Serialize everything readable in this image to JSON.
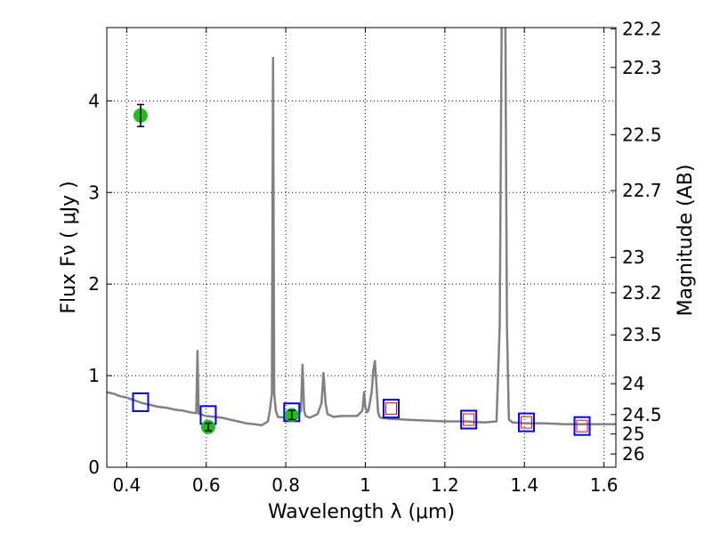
{
  "chart_data": {
    "type": "scatter",
    "xlabel": "Wavelength  λ (μm)",
    "ylabel": "Flux  Fν  ( μJy )",
    "ylabel_right": "Magnitude (AB)",
    "xlim": [
      0.35,
      1.63
    ],
    "ylim": [
      0,
      4.8
    ],
    "grid": true,
    "x_ticks": [
      0.4,
      0.6,
      0.8,
      1,
      1.2,
      1.4,
      1.6
    ],
    "x_tick_labels": [
      "0.4",
      "0.6",
      "0.8",
      "1",
      "1.2",
      "1.4",
      "1.6"
    ],
    "y_ticks": [
      0,
      1,
      2,
      3,
      4
    ],
    "y_tick_labels": [
      "0",
      "1",
      "2",
      "3",
      "4"
    ],
    "right_ticks": [
      22.2,
      22.3,
      22.5,
      22.7,
      23,
      23.2,
      23.5,
      24,
      24.5,
      25,
      26
    ],
    "right_tick_labels": [
      "22.2",
      "22.3",
      "22.5",
      "22.7",
      "23",
      "23.2",
      "23.5",
      "24",
      "24.5",
      "25",
      "26"
    ],
    "colors": {
      "spectrum": "#808080",
      "observed": "#22bb22",
      "model": "#0000ee",
      "upper_limit": "#ee0000"
    },
    "series": [
      {
        "type": "line",
        "x": [
          0.35,
          0.37,
          0.38,
          0.4,
          0.42,
          0.44,
          0.46,
          0.48,
          0.5,
          0.52,
          0.54,
          0.56,
          0.575,
          0.578,
          0.581,
          0.584,
          0.6,
          0.62,
          0.64,
          0.66,
          0.68,
          0.7,
          0.72,
          0.74,
          0.755,
          0.76,
          0.765,
          0.768,
          0.771,
          0.775,
          0.78,
          0.8,
          0.82,
          0.83,
          0.838,
          0.842,
          0.846,
          0.85,
          0.86,
          0.88,
          0.89,
          0.895,
          0.9,
          0.905,
          0.92,
          0.94,
          0.96,
          0.98,
          0.993,
          0.997,
          1.0,
          1.004,
          1.008,
          1.012,
          1.016,
          1.02,
          1.024,
          1.028,
          1.032,
          1.036,
          1.04,
          1.06,
          1.1,
          1.15,
          1.2,
          1.25,
          1.3,
          1.33,
          1.338,
          1.343,
          1.348,
          1.352,
          1.356,
          1.361,
          1.37,
          1.4,
          1.45,
          1.5,
          1.55,
          1.6,
          1.63
        ],
        "y": [
          0.82,
          0.8,
          0.78,
          0.76,
          0.73,
          0.7,
          0.68,
          0.66,
          0.65,
          0.63,
          0.62,
          0.6,
          0.59,
          1.27,
          0.59,
          0.58,
          0.56,
          0.55,
          0.54,
          0.52,
          0.5,
          0.48,
          0.47,
          0.46,
          0.5,
          0.62,
          0.8,
          4.47,
          0.8,
          0.62,
          0.55,
          0.54,
          0.54,
          0.56,
          0.62,
          1.12,
          0.62,
          0.56,
          0.54,
          0.58,
          0.7,
          1.03,
          0.7,
          0.58,
          0.55,
          0.56,
          0.56,
          0.56,
          0.62,
          0.82,
          0.66,
          0.6,
          0.62,
          0.72,
          0.82,
          1.05,
          1.16,
          0.9,
          0.6,
          0.55,
          0.54,
          0.53,
          0.52,
          0.51,
          0.5,
          0.5,
          0.49,
          0.5,
          1.55,
          4.9,
          4.9,
          4.9,
          1.55,
          0.52,
          0.49,
          0.48,
          0.48,
          0.47,
          0.47,
          0.47,
          0.47
        ]
      },
      {
        "type": "scatter",
        "marker": "circle",
        "x": [
          0.435,
          0.605,
          0.815
        ],
        "y": [
          3.84,
          0.44,
          0.57
        ],
        "yerr": [
          0.12,
          0.04,
          0.05
        ]
      },
      {
        "type": "scatter",
        "marker": "open-square",
        "x": [
          0.435,
          0.605,
          0.815,
          1.065,
          1.26,
          1.405,
          1.545
        ],
        "y": [
          0.71,
          0.57,
          0.6,
          0.64,
          0.52,
          0.49,
          0.45
        ]
      },
      {
        "type": "scatter",
        "marker": "open-square-small",
        "x": [
          1.065,
          1.26,
          1.405,
          1.545
        ],
        "y": [
          0.64,
          0.52,
          0.49,
          0.45
        ]
      }
    ]
  }
}
